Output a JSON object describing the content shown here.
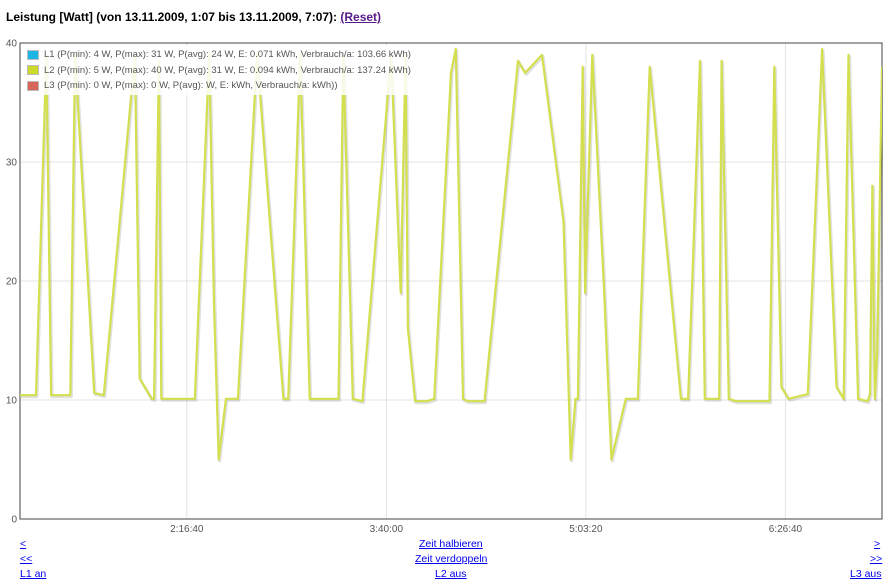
{
  "header": {
    "title": "Leistung [Watt] (von 13.11.2009, 1:07 bis 13.11.2009, 7:07):",
    "reset_label": "(Reset)"
  },
  "nav": {
    "prev_label": "<",
    "prev2_label": "<<",
    "next_label": ">",
    "next2_label": ">>",
    "zoom_in_label": "Zeit halbieren",
    "zoom_out_label": "Zeit verdoppeln",
    "l1_label": "L1 an",
    "l2_label": "L2 aus",
    "l3_label": "L3 aus"
  },
  "chart_data": {
    "type": "line",
    "xlabel": "",
    "ylabel": "",
    "ylim": [
      0,
      40
    ],
    "yticks": [
      0,
      10,
      20,
      30,
      40
    ],
    "xticks": [
      "2:16:40",
      "3:40:00",
      "5:03:20",
      "6:26:40"
    ],
    "grid": true,
    "legend_position": "top-left",
    "legend": [
      {
        "label": "L1 (P(min): 4 W, P(max): 31 W, P(avg): 24 W, E: 0.071 kWh, Verbrauch/a: 103.66 kWh)",
        "color": "#1fb4e6"
      },
      {
        "label": "L2 (P(min): 5 W, P(max): 40 W, P(avg): 31 W, E: 0.094 kWh, Verbrauch/a: 137.24 kWh)",
        "color": "#ccd92a"
      },
      {
        "label": "L3 (P(min): 0 W, P(max): 0 W, P(avg): W, E: kWh, Verbrauch/a: kWh))",
        "color": "#d9655a"
      }
    ],
    "series": [
      {
        "color": "#d3df4f",
        "x": [
          "1:07:00",
          "1:13:40",
          "1:18:00",
          "1:20:00",
          "1:28:00",
          "1:30:00",
          "1:38:00",
          "1:42:00",
          "1:55:00",
          "1:57:00",
          "2:02:00",
          "2:03:00",
          "2:05:00",
          "2:06:00",
          "2:16:00",
          "2:20:00",
          "2:26:00",
          "2:28:00",
          "2:30:00",
          "2:33:00",
          "2:38:00",
          "2:46:00",
          "2:57:00",
          "2:59:00",
          "3:04:00",
          "3:08:00",
          "3:20:00",
          "3:22:00",
          "3:26:00",
          "3:30:00",
          "3:42:00",
          "3:46:00",
          "3:48:00",
          "3:49:00",
          "3:52:00",
          "3:57:00",
          "4:00:00",
          "4:07:00",
          "4:09:00",
          "4:12:00",
          "4:14:00",
          "4:21:00",
          "4:35:00",
          "4:38:00",
          "4:45:00",
          "4:54:00",
          "4:57:00",
          "4:59:00",
          "5:00:00",
          "5:02:00",
          "5:03:00",
          "5:06:00",
          "5:11:00",
          "5:14:00",
          "5:20:00",
          "5:25:00",
          "5:30:00",
          "5:43:00",
          "5:46:00",
          "5:51:00",
          "5:53:00",
          "5:59:00",
          "6:00:00",
          "6:03:00",
          "6:06:00",
          "6:20:00",
          "6:22:00",
          "6:25:00",
          "6:28:00",
          "6:36:00",
          "6:42:00",
          "6:48:00",
          "6:51:00",
          "6:53:00",
          "6:57:00",
          "7:01:00",
          "7:02:00",
          "7:03:00",
          "7:04:00",
          "7:05:00",
          "7:07:00"
        ],
        "values": [
          10.4,
          10.4,
          39,
          10.4,
          10.4,
          39,
          10.6,
          10.4,
          39,
          11.8,
          10.1,
          10.1,
          38.5,
          10.1,
          10.1,
          10.1,
          39,
          18,
          5,
          10.1,
          10.1,
          39,
          10.1,
          10.1,
          39,
          10.1,
          10.1,
          39,
          10.1,
          9.9,
          39,
          19,
          39,
          16,
          9.9,
          9.9,
          10.1,
          37.5,
          39.5,
          10.1,
          9.9,
          9.9,
          38.5,
          37.5,
          39,
          25,
          5,
          10.1,
          10.1,
          38,
          19,
          39,
          19,
          5,
          10.1,
          10.1,
          38,
          10.1,
          10.1,
          38.5,
          10.1,
          10.1,
          38.5,
          10.1,
          9.9,
          9.9,
          38,
          11.1,
          10.1,
          10.5,
          39.5,
          11.1,
          10.1,
          39,
          10.1,
          9.9,
          10.5,
          28,
          10.1,
          14,
          38
        ]
      }
    ]
  }
}
